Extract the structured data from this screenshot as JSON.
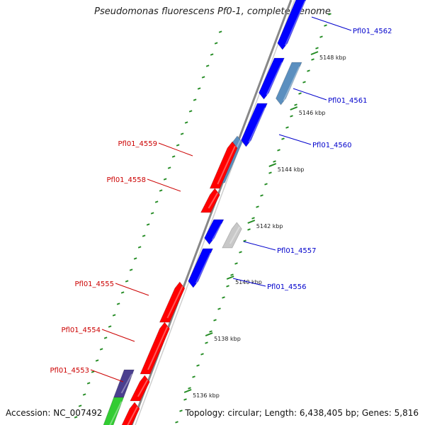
{
  "title": "Pseudomonas fluorescens Pf0-1, complete genome",
  "footer": {
    "accession": "Accession: NC_007492",
    "summary": "Topology: circular; Length: 6,438,405 bp; Genes: 5,816"
  },
  "colors": {
    "forward_gene": "#ff0000",
    "reverse_gene": "#0000ff",
    "steel_gene": "#5b8fbf",
    "grey_gene": "#c8c8c8",
    "purple_gene": "#4a3f8f",
    "green_gene": "#33cc33",
    "scale": "#228b22",
    "backbone": "#888888"
  },
  "scale_ticks": [
    {
      "label": "5148 kbp"
    },
    {
      "label": "5146 kbp"
    },
    {
      "label": "5144 kbp"
    },
    {
      "label": "5142 kbp"
    },
    {
      "label": "5140 kbp"
    },
    {
      "label": "5138 kbp"
    },
    {
      "label": "5136 kbp"
    }
  ],
  "genes": [
    {
      "label": "Pfl01_4562",
      "strand": "reverse"
    },
    {
      "label": "Pfl01_4561",
      "strand": "reverse"
    },
    {
      "label": "Pfl01_4560",
      "strand": "reverse"
    },
    {
      "label": "Pfl01_4559",
      "strand": "forward"
    },
    {
      "label": "Pfl01_4558",
      "strand": "forward"
    },
    {
      "label": "Pfl01_4557",
      "strand": "reverse"
    },
    {
      "label": "Pfl01_4556",
      "strand": "reverse"
    },
    {
      "label": "Pfl01_4555",
      "strand": "forward"
    },
    {
      "label": "Pfl01_4554",
      "strand": "forward"
    },
    {
      "label": "Pfl01_4553",
      "strand": "forward"
    }
  ]
}
